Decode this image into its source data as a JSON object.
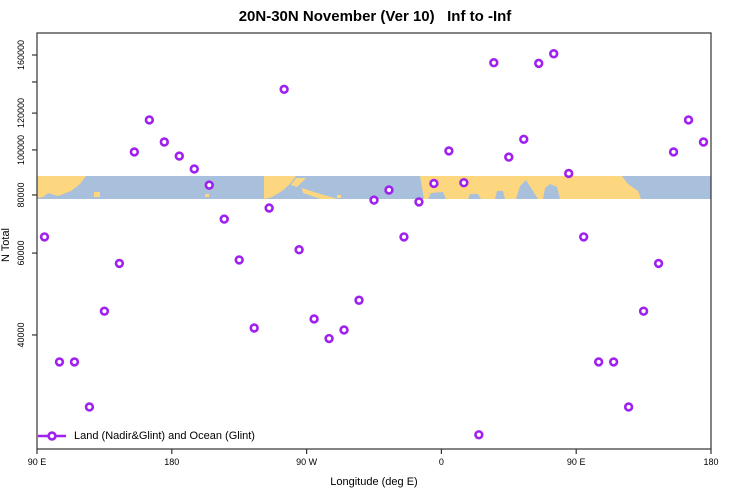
{
  "title": "20N-30N November (Ver 10)   Inf to -Inf",
  "colors": {
    "marker": "#A020F0",
    "marker_fill": "#ffffff",
    "ocean": "#A9C0DC",
    "land": "#FCD77F",
    "axis": "#333333",
    "text": "#000000",
    "background": "#ffffff"
  },
  "legend": {
    "label": "Land (Nadir&Glint) and Ocean (Glint)"
  },
  "chart_data": {
    "type": "scatter",
    "title": "20N-30N November (Ver 10)   Inf to -Inf",
    "xlabel": "Longitude (deg E)",
    "ylabel": "N Total",
    "y_scale": "log",
    "x_range_deg_east_continued": [
      90,
      540
    ],
    "y_range_approx": [
      22700,
      178000
    ],
    "grid": false,
    "legend_position": "bottom-left",
    "x_ticks": [
      {
        "lon": 90,
        "label": "90 E"
      },
      {
        "lon": 180,
        "label": "180"
      },
      {
        "lon": 270,
        "label": "90 W"
      },
      {
        "lon": 360,
        "label": "0"
      },
      {
        "lon": 450,
        "label": "90 E"
      },
      {
        "lon": 540,
        "label": "180"
      }
    ],
    "y_ticks": [
      {
        "value": 160000,
        "label": "160000"
      },
      {
        "value": 140000,
        "label": ""
      },
      {
        "value": 120000,
        "label": "120000"
      },
      {
        "value": 100000,
        "label": "100000"
      },
      {
        "value": 80000,
        "label": "80000"
      },
      {
        "value": 60000,
        "label": "60000"
      },
      {
        "value": 40000,
        "label": "40000"
      }
    ],
    "points": [
      {
        "lon": 95,
        "n": 65000
      },
      {
        "lon": 105,
        "n": 35000
      },
      {
        "lon": 115,
        "n": 35000
      },
      {
        "lon": 125,
        "n": 28000
      },
      {
        "lon": 135,
        "n": 45000
      },
      {
        "lon": 145,
        "n": 57000
      },
      {
        "lon": 155,
        "n": 99000
      },
      {
        "lon": 165,
        "n": 116000
      },
      {
        "lon": 175,
        "n": 104000
      },
      {
        "lon": 185,
        "n": 97000
      },
      {
        "lon": 195,
        "n": 91000
      },
      {
        "lon": 205,
        "n": 84000
      },
      {
        "lon": 215,
        "n": 71000
      },
      {
        "lon": 225,
        "n": 58000
      },
      {
        "lon": 235,
        "n": 41400
      },
      {
        "lon": 245,
        "n": 75000
      },
      {
        "lon": 255,
        "n": 135000
      },
      {
        "lon": 265,
        "n": 61000
      },
      {
        "lon": 275,
        "n": 43300
      },
      {
        "lon": 285,
        "n": 39300
      },
      {
        "lon": 295,
        "n": 41000
      },
      {
        "lon": 305,
        "n": 47500
      },
      {
        "lon": 315,
        "n": 78000
      },
      {
        "lon": 325,
        "n": 82000
      },
      {
        "lon": 335,
        "n": 65000
      },
      {
        "lon": 345,
        "n": 77300
      },
      {
        "lon": 355,
        "n": 84700
      },
      {
        "lon": 365,
        "n": 99500
      },
      {
        "lon": 375,
        "n": 85000
      },
      {
        "lon": 385,
        "n": 24400
      },
      {
        "lon": 395,
        "n": 154000
      },
      {
        "lon": 405,
        "n": 96500
      },
      {
        "lon": 415,
        "n": 105400
      },
      {
        "lon": 425,
        "n": 153500
      },
      {
        "lon": 435,
        "n": 161000
      },
      {
        "lon": 445,
        "n": 89000
      },
      {
        "lon": 455,
        "n": 65000
      },
      {
        "lon": 465,
        "n": 35000
      },
      {
        "lon": 475,
        "n": 35000
      },
      {
        "lon": 485,
        "n": 28000
      },
      {
        "lon": 495,
        "n": 45000
      },
      {
        "lon": 505,
        "n": 57000
      },
      {
        "lon": 515,
        "n": 99000
      },
      {
        "lon": 525,
        "n": 116000
      },
      {
        "lon": 535,
        "n": 104000
      }
    ],
    "map_strip": {
      "description": "world land/ocean band 20N-30N drawn across plot",
      "value_top": 87500,
      "value_bottom": 78500,
      "land_patches": [
        [
          [
            37,
            176
          ],
          [
            86,
            176
          ],
          [
            80,
            184
          ],
          [
            71,
            191
          ],
          [
            58,
            196
          ],
          [
            48,
            193
          ],
          [
            43,
            197
          ],
          [
            37,
            198
          ]
        ],
        [
          [
            94,
            192
          ],
          [
            100,
            192
          ],
          [
            100,
            197
          ],
          [
            94,
            197
          ]
        ],
        [
          [
            205,
            194
          ],
          [
            209,
            194
          ],
          [
            209,
            197
          ],
          [
            205,
            197
          ]
        ],
        [
          [
            264,
            176
          ],
          [
            296,
            176
          ],
          [
            290,
            184
          ],
          [
            282,
            191
          ],
          [
            272,
            197
          ],
          [
            264,
            199
          ]
        ],
        [
          [
            296,
            178
          ],
          [
            306,
            178
          ],
          [
            297,
            187
          ],
          [
            291,
            185
          ]
        ],
        [
          [
            302,
            188
          ],
          [
            317,
            193
          ],
          [
            331,
            197
          ],
          [
            337,
            199
          ],
          [
            321,
            199
          ],
          [
            303,
            193
          ]
        ],
        [
          [
            337,
            195
          ],
          [
            341,
            195
          ],
          [
            341,
            198
          ],
          [
            337,
            198
          ]
        ],
        [
          [
            420,
            176
          ],
          [
            622,
            176
          ],
          [
            628,
            184
          ],
          [
            638,
            191
          ],
          [
            641,
            199
          ],
          [
            560,
            199
          ],
          [
            557,
            187
          ],
          [
            550,
            184
          ],
          [
            545,
            188
          ],
          [
            543,
            199
          ],
          [
            538,
            199
          ],
          [
            526,
            180
          ],
          [
            520,
            186
          ],
          [
            516,
            199
          ],
          [
            505,
            199
          ],
          [
            503,
            191
          ],
          [
            497,
            191
          ],
          [
            495,
            199
          ],
          [
            481,
            199
          ],
          [
            478,
            194
          ],
          [
            470,
            194
          ],
          [
            468,
            199
          ],
          [
            446,
            199
          ],
          [
            443,
            192
          ],
          [
            431,
            193
          ],
          [
            428,
            199
          ],
          [
            424,
            199
          ]
        ]
      ]
    }
  }
}
